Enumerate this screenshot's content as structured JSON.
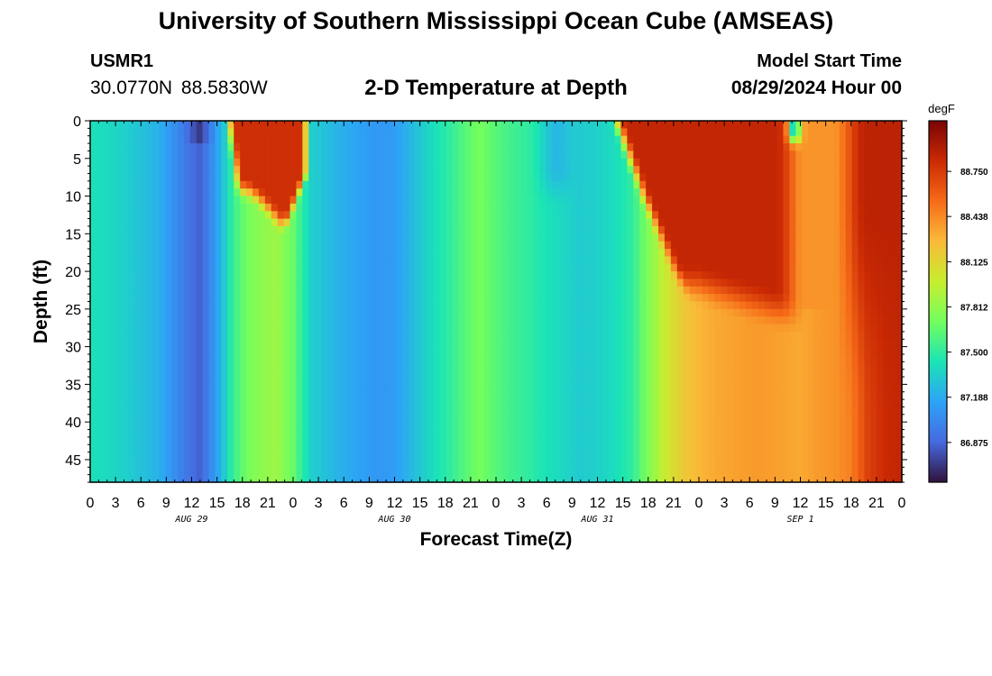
{
  "header": {
    "title": "University of Southern Mississippi Ocean Cube (AMSEAS)",
    "station": "USMR1",
    "coords": "30.0770N  88.5830W",
    "subtitle": "2-D Temperature at Depth",
    "start_label": "Model Start Time",
    "start_value": "08/29/2024 Hour 00"
  },
  "footer": {
    "title": "University of Southern Mississippi Ocean Cube (AMSEAS)"
  },
  "chart_data": {
    "type": "heatmap",
    "xlabel": "Forecast Time(Z)",
    "ylabel": "Depth (ft)",
    "x_ticks": [
      "0",
      "3",
      "6",
      "9",
      "12",
      "15",
      "18",
      "21",
      "0",
      "3",
      "6",
      "9",
      "12",
      "15",
      "18",
      "21",
      "0",
      "3",
      "6",
      "9",
      "12",
      "15",
      "18",
      "21",
      "0",
      "3",
      "6",
      "9",
      "12",
      "15",
      "18",
      "21",
      "0"
    ],
    "x_range_hours": [
      0,
      96
    ],
    "date_labels": [
      {
        "label": "AUG 29",
        "hour": 12
      },
      {
        "label": "AUG 30",
        "hour": 36
      },
      {
        "label": "AUG 31",
        "hour": 60
      },
      {
        "label": "SEP 1",
        "hour": 84
      }
    ],
    "y_ticks": [
      0,
      5,
      10,
      15,
      20,
      25,
      30,
      35,
      40,
      45
    ],
    "y_range_ft": [
      0,
      48
    ],
    "y_inverted": true,
    "colorbar": {
      "unit": "degF",
      "range": [
        86.6,
        89.1
      ],
      "tick_values": [
        86.875,
        87.188,
        87.5,
        87.812,
        88.125,
        88.438,
        88.75
      ],
      "tick_labels": [
        "86.875",
        "87.188",
        "87.500",
        "87.812",
        "88.125",
        "88.438",
        "88.750"
      ],
      "colormap": [
        "#30123b",
        "#4669df",
        "#2da3f7",
        "#1ae4b6",
        "#72fe5e",
        "#c8ee2e",
        "#faba39",
        "#f66b18",
        "#cb2a04",
        "#7a0403"
      ]
    }
  }
}
